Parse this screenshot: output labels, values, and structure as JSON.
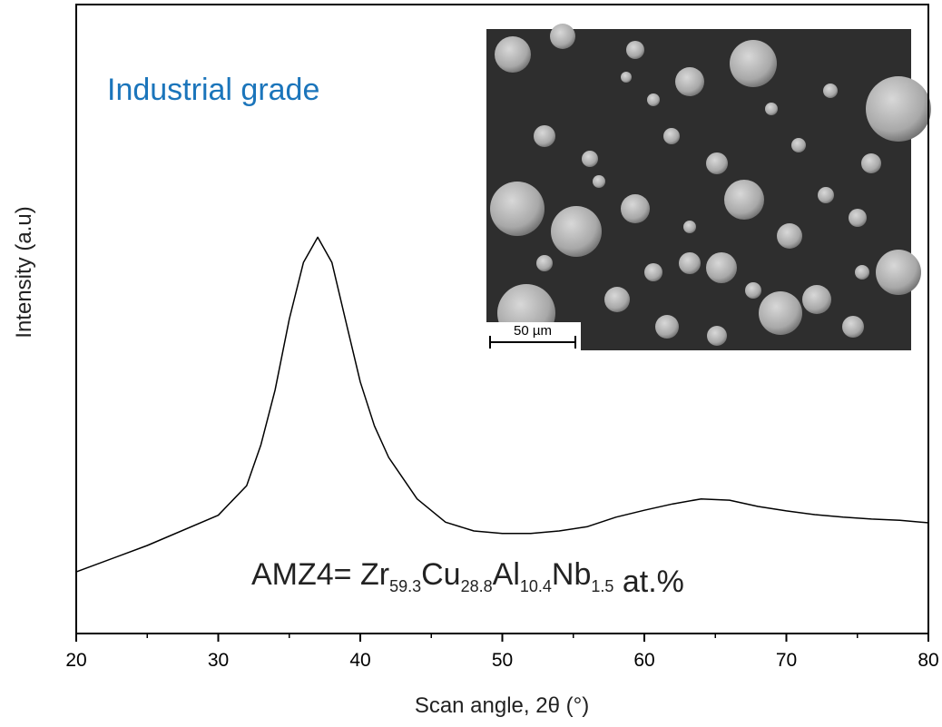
{
  "chart_data": {
    "type": "line",
    "x_label": "Scan angle, 2θ (°)",
    "y_label": "Intensity (a.u)",
    "x": [
      20,
      25,
      30,
      32,
      33,
      34,
      35,
      36,
      37,
      38,
      39,
      40,
      41,
      42,
      44,
      46,
      48,
      50,
      52,
      54,
      56,
      58,
      60,
      62,
      64,
      66,
      68,
      70,
      72,
      74,
      76,
      78,
      80
    ],
    "values": [
      9.8,
      14,
      18.8,
      23.5,
      30,
      38.7,
      50,
      59,
      63,
      59,
      49.5,
      40,
      33,
      28,
      21.4,
      17.7,
      16.3,
      15.9,
      15.9,
      16.3,
      17,
      18.5,
      19.6,
      20.6,
      21.4,
      21.2,
      20.2,
      19.5,
      18.9,
      18.5,
      18.2,
      18,
      17.6
    ],
    "color": "#000000",
    "xlim": [
      20,
      80
    ],
    "ylim": [
      0,
      100
    ],
    "xticks": [
      20,
      30,
      40,
      50,
      60,
      70,
      80
    ],
    "xticks_minor": [
      25,
      35,
      45,
      55,
      65,
      75
    ],
    "annotations": {
      "grade": "Industrial grade",
      "formula": {
        "prefix": "AMZ4= ",
        "elements": [
          {
            "symbol": "Zr",
            "sub": "59.3"
          },
          {
            "symbol": "Cu",
            "sub": "28.8"
          },
          {
            "symbol": "Al",
            "sub": "10.4"
          },
          {
            "symbol": "Nb",
            "sub": "1.5"
          }
        ],
        "suffix": " at.%"
      },
      "scale_bar": "50 µm"
    }
  }
}
